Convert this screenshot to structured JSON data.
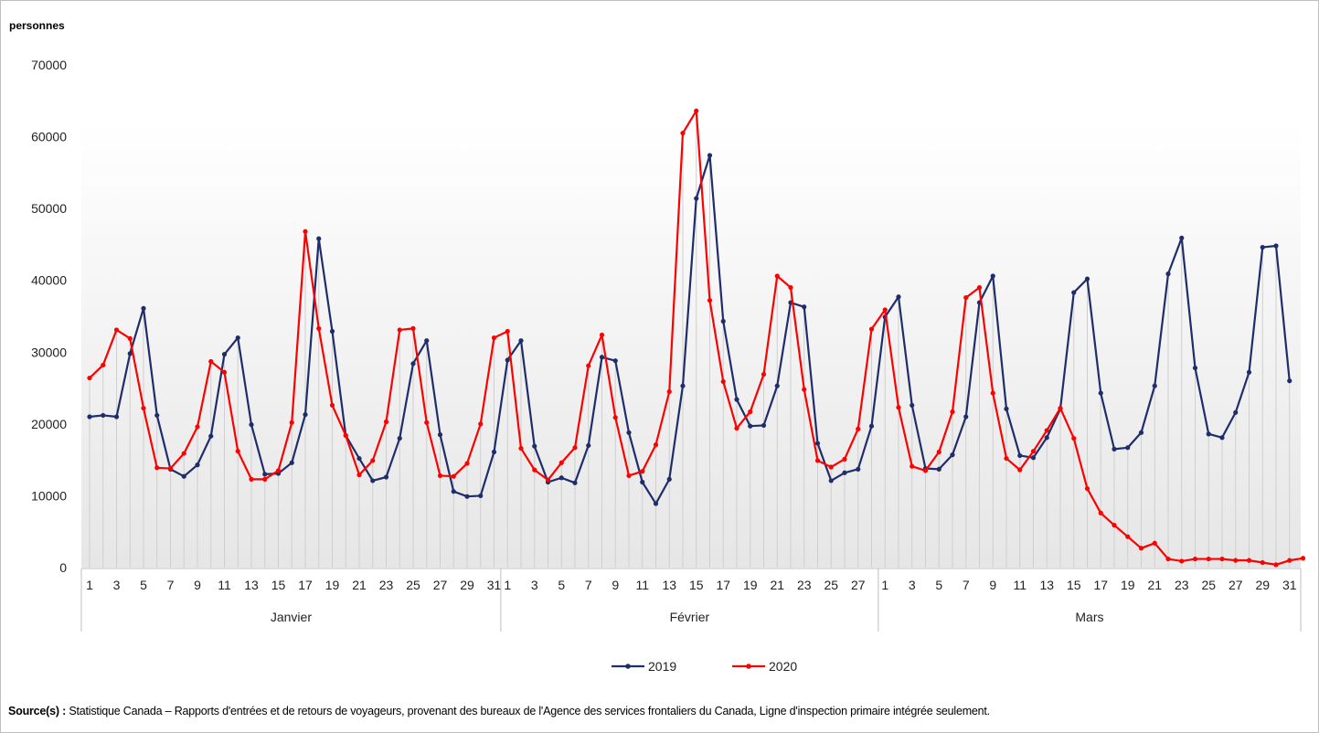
{
  "chart_data": {
    "type": "line",
    "ylabel": "personnes",
    "ylim": [
      0,
      70000
    ],
    "y_ticks": [
      0,
      10000,
      20000,
      30000,
      40000,
      50000,
      60000,
      70000
    ],
    "grid": false,
    "legend_position": "bottom-center",
    "months": [
      {
        "label": "Janvier",
        "days": 31
      },
      {
        "label": "Février",
        "days": 28
      },
      {
        "label": "Mars",
        "days": 31
      }
    ],
    "series": [
      {
        "name": "2019",
        "color": "#1f2d6b",
        "values": [
          21000,
          21200,
          21000,
          29800,
          36100,
          21200,
          13700,
          12700,
          14300,
          18300,
          29700,
          32000,
          19900,
          13000,
          13100,
          14600,
          21300,
          45800,
          32900,
          18400,
          15200,
          12100,
          12600,
          18000,
          28400,
          31600,
          18500,
          10600,
          9900,
          10000,
          16100,
          28900,
          31600,
          16900,
          11900,
          12500,
          11800,
          17000,
          29300,
          28800,
          18800,
          11900,
          8900,
          12300,
          25300,
          51400,
          57400,
          34300,
          23400,
          19700,
          19800,
          25300,
          36900,
          36300,
          17300,
          12100,
          13200,
          13700,
          19700,
          34900,
          37700,
          22600,
          13800,
          13700,
          15700,
          21000,
          36900,
          40600,
          22100,
          15600,
          15300,
          18100,
          22100,
          38300,
          40200,
          24300,
          16500,
          16700,
          18800,
          25300,
          40900,
          45900,
          27800,
          18600,
          18100,
          21600,
          27200,
          44600,
          44800,
          26000
        ]
      },
      {
        "name": "2020",
        "color": "#ff0000",
        "values": [
          26400,
          28200,
          33100,
          31900,
          22200,
          13900,
          13800,
          15900,
          19600,
          28700,
          27200,
          16200,
          12300,
          12300,
          13500,
          20200,
          46800,
          33300,
          22600,
          18400,
          12900,
          14900,
          20300,
          33100,
          33300,
          20200,
          12800,
          12700,
          14500,
          20000,
          32000,
          32900,
          16600,
          13600,
          12200,
          14600,
          16700,
          28100,
          32400,
          20900,
          12800,
          13400,
          17100,
          24500,
          60500,
          63600,
          37200,
          25900,
          19400,
          21700,
          26900,
          40600,
          39000,
          24800,
          14900,
          14000,
          15100,
          19300,
          33200,
          35900,
          22300,
          14100,
          13500,
          16100,
          21700,
          37600,
          39000,
          24300,
          15200,
          13600,
          16200,
          19100,
          22200,
          18000,
          11000,
          7600,
          5900,
          4300,
          2700,
          3400,
          1200,
          900,
          1200,
          1200,
          1200,
          1000,
          1000,
          700,
          400,
          1000,
          1300
        ]
      }
    ]
  },
  "source": {
    "label": "Source(s) :",
    "text": " Statistique Canada – Rapports d'entrées et de retours de voyageurs, provenant des bureaux de l'Agence des services frontaliers du Canada, Ligne d'inspection primaire intégrée seulement."
  }
}
